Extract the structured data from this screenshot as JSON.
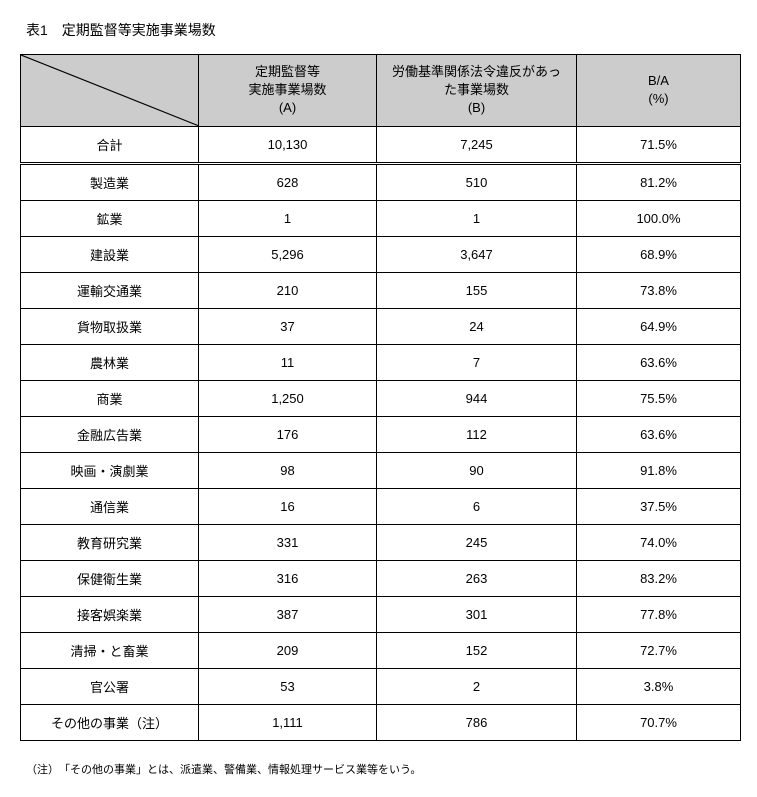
{
  "title": "表1　定期監督等実施事業場数",
  "headers": {
    "colA": "定期監督等\n実施事業場数\n(A)",
    "colB": "労働基準関係法令違反があっ\nた事業場数\n(B)",
    "colRatio": "B/A\n(%)"
  },
  "total": {
    "label": "合計",
    "a": "10,130",
    "b": "7,245",
    "ratio": "71.5%"
  },
  "rows": [
    {
      "label": "製造業",
      "a": "628",
      "b": "510",
      "ratio": "81.2%"
    },
    {
      "label": "鉱業",
      "a": "1",
      "b": "1",
      "ratio": "100.0%"
    },
    {
      "label": "建設業",
      "a": "5,296",
      "b": "3,647",
      "ratio": "68.9%"
    },
    {
      "label": "運輸交通業",
      "a": "210",
      "b": "155",
      "ratio": "73.8%"
    },
    {
      "label": "貨物取扱業",
      "a": "37",
      "b": "24",
      "ratio": "64.9%"
    },
    {
      "label": "農林業",
      "a": "11",
      "b": "7",
      "ratio": "63.6%"
    },
    {
      "label": "商業",
      "a": "1,250",
      "b": "944",
      "ratio": "75.5%"
    },
    {
      "label": "金融広告業",
      "a": "176",
      "b": "112",
      "ratio": "63.6%"
    },
    {
      "label": "映画・演劇業",
      "a": "98",
      "b": "90",
      "ratio": "91.8%"
    },
    {
      "label": "通信業",
      "a": "16",
      "b": "6",
      "ratio": "37.5%"
    },
    {
      "label": "教育研究業",
      "a": "331",
      "b": "245",
      "ratio": "74.0%"
    },
    {
      "label": "保健衛生業",
      "a": "316",
      "b": "263",
      "ratio": "83.2%"
    },
    {
      "label": "接客娯楽業",
      "a": "387",
      "b": "301",
      "ratio": "77.8%"
    },
    {
      "label": "清掃・と畜業",
      "a": "209",
      "b": "152",
      "ratio": "72.7%"
    },
    {
      "label": "官公署",
      "a": "53",
      "b": "2",
      "ratio": "3.8%"
    },
    {
      "label": "その他の事業（注）",
      "a": "1,111",
      "b": "786",
      "ratio": "70.7%"
    }
  ],
  "footnote": "（注）　「その他の事業」とは、派遣業、警備業、情報処理サービス業等をいう。",
  "colors": {
    "header_bg": "#cccccc",
    "border": "#000000",
    "bg": "#ffffff",
    "text": "#000000"
  },
  "typography": {
    "body_fontsize": 13,
    "title_fontsize": 14,
    "footnote_fontsize": 11
  }
}
